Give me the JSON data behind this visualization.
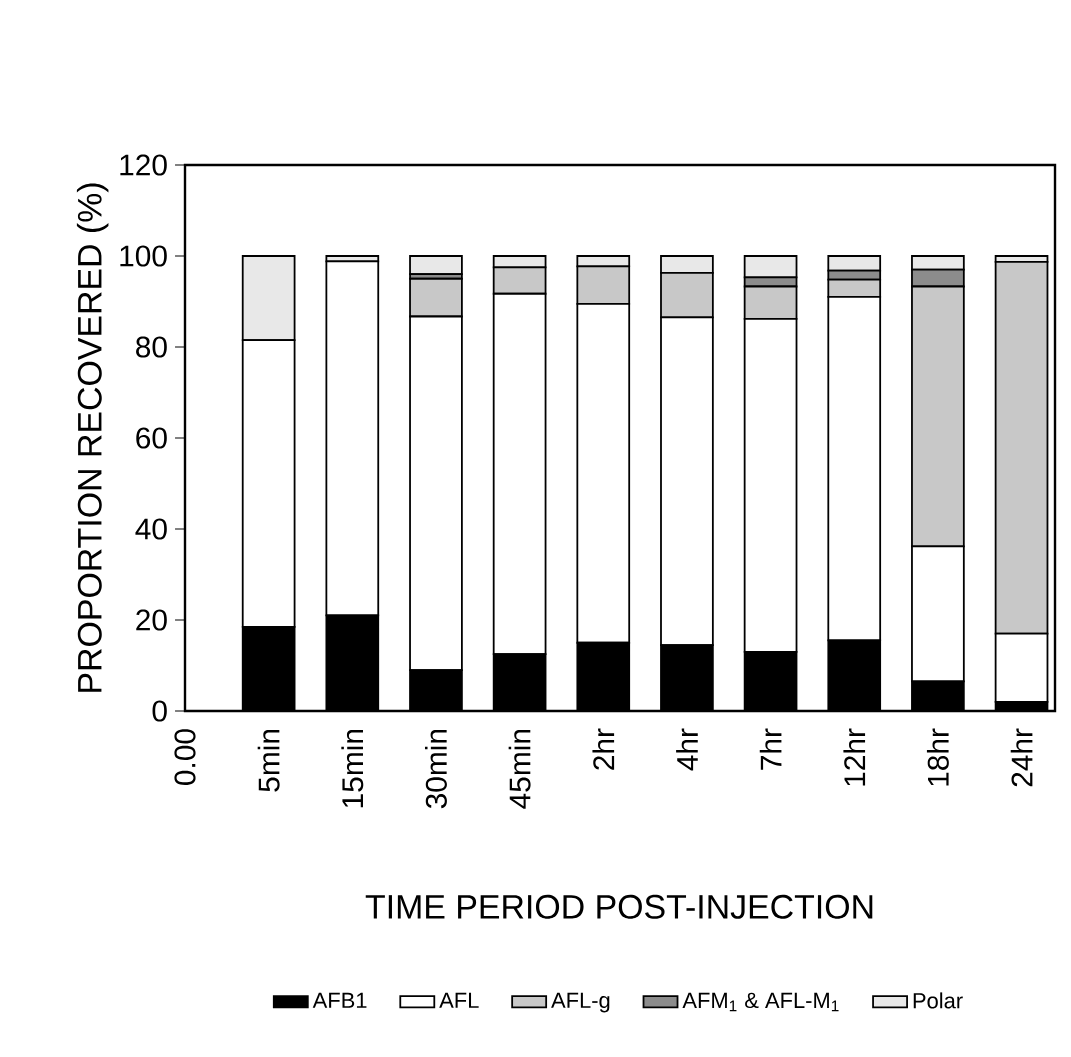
{
  "chart_data": {
    "type": "bar",
    "stacked": true,
    "xlabel": "TIME PERIOD POST-INJECTION",
    "ylabel": "PROPORTION RECOVERED (%)",
    "categories": [
      "0.00",
      "5min",
      "15min",
      "30min",
      "45min",
      "2hr",
      "4hr",
      "7hr",
      "12hr",
      "18hr",
      "24hr"
    ],
    "series": [
      {
        "name": "AFB1",
        "color": "#000000",
        "values": [
          null,
          18.5,
          21,
          9,
          12.5,
          15,
          14.5,
          13,
          15.5,
          6.5,
          2
        ]
      },
      {
        "name": "AFL",
        "color": "#ffffff",
        "values": [
          null,
          63,
          77.8,
          77.7,
          79.2,
          74.5,
          72,
          73.2,
          75.5,
          29.7,
          15
        ]
      },
      {
        "name": "AFL-g",
        "color": "#c8c8c8",
        "values": [
          null,
          0,
          0,
          8.3,
          5.8,
          8.2,
          9.8,
          7.1,
          3.8,
          57.1,
          81.7
        ]
      },
      {
        "name": "AFM$_{1}$ & AFL-M$_{1}$",
        "color": "#8c8c8c",
        "values": [
          null,
          0,
          0,
          1,
          0,
          0,
          0,
          2,
          2,
          3.7,
          0
        ]
      },
      {
        "name": "Polar",
        "color": "#e8e8e8",
        "values": [
          null,
          18.5,
          1.2,
          4,
          2.5,
          2.3,
          3.7,
          4.7,
          3.2,
          3,
          1.3
        ]
      }
    ],
    "ylim": [
      0,
      120
    ],
    "yticks": [
      0,
      20,
      40,
      60,
      80,
      100,
      120
    ],
    "grid": false,
    "legend": "bottom"
  }
}
